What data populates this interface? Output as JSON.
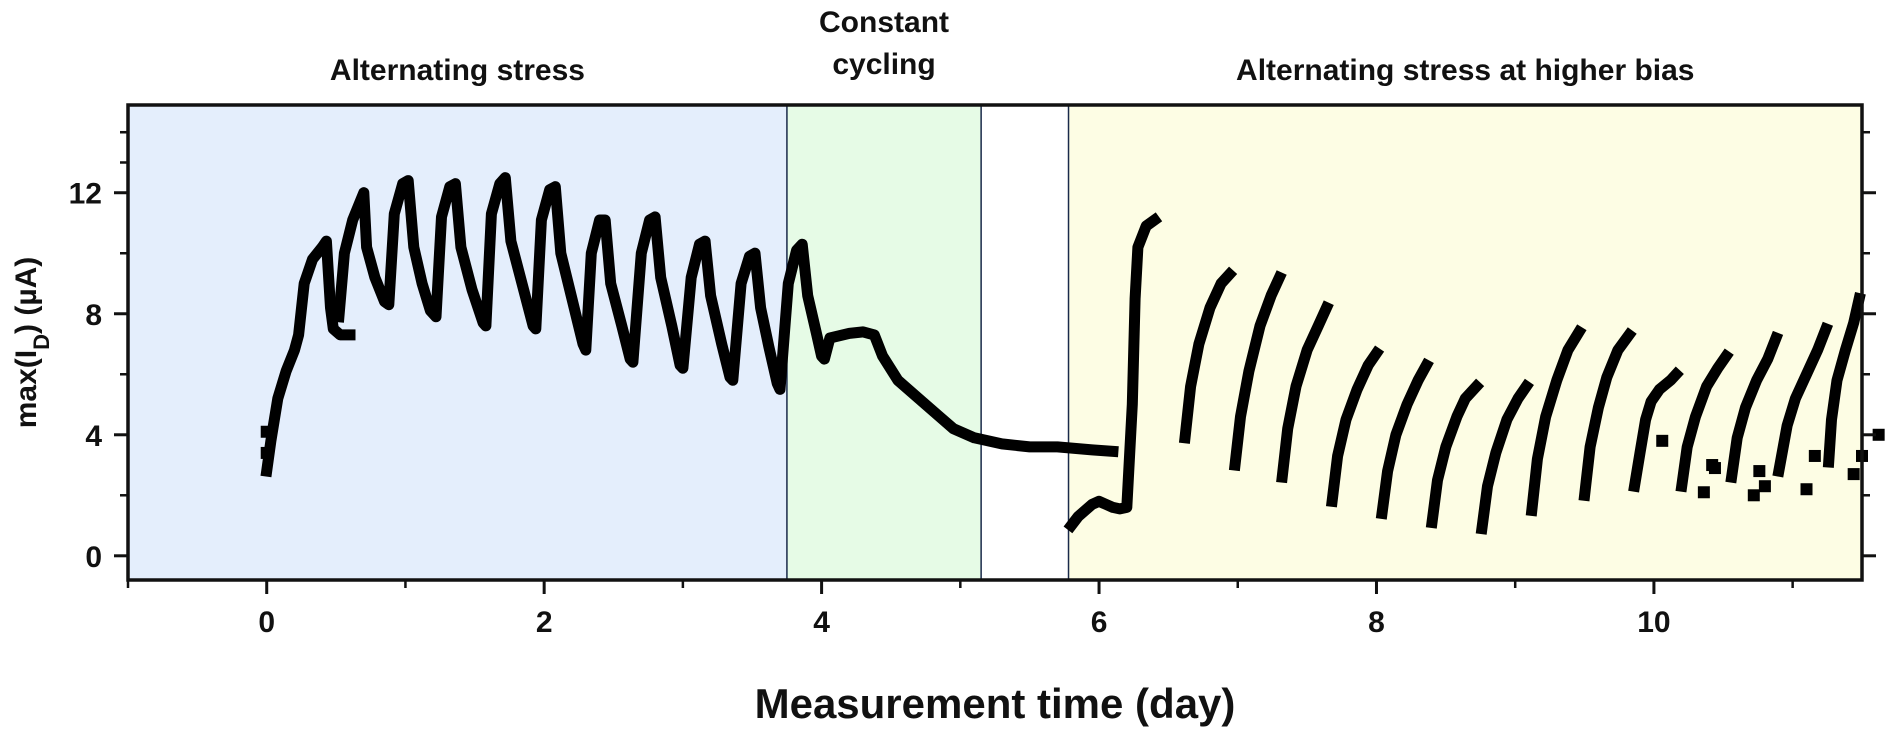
{
  "chart_data": {
    "type": "line",
    "title": "",
    "xlabel": "Measurement time (day)",
    "ylabel": {
      "prefix": "max(I",
      "subscript": "D",
      "suffix": ") (µA)"
    },
    "xlim": [
      -1,
      11.5
    ],
    "ylim": [
      -0.8,
      14.9
    ],
    "x_ticks": [
      0,
      2,
      4,
      6,
      8,
      10
    ],
    "y_ticks": [
      0,
      4,
      8,
      12
    ],
    "grid": false,
    "legend": "none",
    "regions": [
      {
        "label": "Alternating stress",
        "x_start": -1,
        "x_end": 3.75,
        "color": "#e4eefc"
      },
      {
        "label": "Constant cycling",
        "x_start": 3.75,
        "x_end": 5.15,
        "color": "#e6fbe6"
      },
      {
        "label": "Alternating stress at higher bias",
        "x_start": 5.78,
        "x_end": 11.5,
        "color": "#fdfde4"
      }
    ],
    "series": [
      {
        "color": "#000000",
        "segments": [
          [
            [
              0,
              2.8
            ],
            [
              0.03,
              3.8
            ],
            [
              0.08,
              5.2
            ],
            [
              0.14,
              6.1
            ],
            [
              0.2,
              6.8
            ],
            [
              0.23,
              7.3
            ],
            [
              0.27,
              9.0
            ],
            [
              0.33,
              9.8
            ],
            [
              0.4,
              10.2
            ],
            [
              0.43,
              10.4
            ],
            [
              0.46,
              8.2
            ],
            [
              0.48,
              7.5
            ],
            [
              0.53,
              7.3
            ],
            [
              0.6,
              7.3
            ]
          ],
          [
            [
              0.52,
              7.9
            ],
            [
              0.56,
              10.0
            ],
            [
              0.62,
              11.1
            ],
            [
              0.7,
              12.0
            ],
            [
              0.72,
              10.2
            ],
            [
              0.78,
              9.2
            ],
            [
              0.85,
              8.4
            ],
            [
              0.88,
              8.3
            ],
            [
              0.92,
              11.3
            ],
            [
              0.98,
              12.3
            ],
            [
              1.02,
              12.4
            ],
            [
              1.06,
              10.2
            ],
            [
              1.12,
              9.0
            ],
            [
              1.18,
              8.1
            ],
            [
              1.22,
              7.9
            ],
            [
              1.26,
              11.2
            ],
            [
              1.32,
              12.2
            ],
            [
              1.36,
              12.3
            ],
            [
              1.4,
              10.2
            ],
            [
              1.48,
              8.8
            ],
            [
              1.56,
              7.7
            ],
            [
              1.58,
              7.6
            ],
            [
              1.62,
              11.3
            ],
            [
              1.68,
              12.3
            ],
            [
              1.72,
              12.5
            ],
            [
              1.76,
              10.4
            ],
            [
              1.84,
              9.0
            ],
            [
              1.92,
              7.6
            ],
            [
              1.94,
              7.5
            ],
            [
              1.98,
              11.1
            ],
            [
              2.04,
              12.1
            ],
            [
              2.08,
              12.2
            ],
            [
              2.12,
              10.0
            ],
            [
              2.2,
              8.5
            ],
            [
              2.28,
              7.0
            ],
            [
              2.3,
              6.8
            ],
            [
              2.34,
              10.0
            ],
            [
              2.4,
              11.1
            ],
            [
              2.44,
              11.1
            ],
            [
              2.48,
              9.0
            ],
            [
              2.56,
              7.6
            ],
            [
              2.62,
              6.5
            ],
            [
              2.64,
              6.4
            ],
            [
              2.7,
              10.0
            ],
            [
              2.76,
              11.1
            ],
            [
              2.8,
              11.2
            ],
            [
              2.84,
              9.2
            ],
            [
              2.92,
              7.6
            ],
            [
              2.98,
              6.3
            ],
            [
              3.0,
              6.2
            ],
            [
              3.06,
              9.2
            ],
            [
              3.12,
              10.3
            ],
            [
              3.16,
              10.4
            ],
            [
              3.2,
              8.6
            ],
            [
              3.28,
              7.0
            ],
            [
              3.34,
              5.9
            ],
            [
              3.36,
              5.8
            ],
            [
              3.42,
              9.0
            ],
            [
              3.48,
              9.9
            ],
            [
              3.52,
              10.0
            ],
            [
              3.56,
              8.2
            ],
            [
              3.62,
              6.9
            ],
            [
              3.68,
              5.7
            ],
            [
              3.7,
              5.5
            ],
            [
              3.76,
              9.0
            ],
            [
              3.82,
              10.1
            ],
            [
              3.86,
              10.3
            ],
            [
              3.9,
              8.6
            ],
            [
              3.96,
              7.4
            ],
            [
              4.0,
              6.6
            ],
            [
              4.02,
              6.5
            ],
            [
              4.06,
              7.2
            ],
            [
              4.2,
              7.35
            ],
            [
              4.3,
              7.4
            ],
            [
              4.38,
              7.3
            ],
            [
              4.44,
              6.6
            ],
            [
              4.55,
              5.8
            ],
            [
              4.7,
              5.2
            ],
            [
              4.85,
              4.6
            ],
            [
              4.95,
              4.2
            ],
            [
              5.1,
              3.9
            ],
            [
              5.3,
              3.7
            ],
            [
              5.5,
              3.6
            ],
            [
              5.7,
              3.6
            ],
            [
              5.95,
              3.5
            ],
            [
              6.1,
              3.45
            ]
          ],
          [
            [
              5.8,
              1.0
            ],
            [
              5.85,
              1.3
            ],
            [
              5.9,
              1.5
            ],
            [
              5.95,
              1.7
            ],
            [
              6.0,
              1.8
            ],
            [
              6.05,
              1.7
            ],
            [
              6.1,
              1.6
            ],
            [
              6.15,
              1.55
            ],
            [
              6.2,
              1.6
            ],
            [
              6.24,
              5.0
            ],
            [
              6.26,
              8.5
            ],
            [
              6.28,
              10.2
            ],
            [
              6.34,
              10.9
            ],
            [
              6.4,
              11.1
            ]
          ],
          [
            [
              6.62,
              3.9
            ],
            [
              6.66,
              5.6
            ],
            [
              6.72,
              7.0
            ],
            [
              6.8,
              8.2
            ],
            [
              6.88,
              9.0
            ],
            [
              6.94,
              9.3
            ]
          ],
          [
            [
              6.98,
              3.0
            ],
            [
              7.02,
              4.6
            ],
            [
              7.08,
              6.1
            ],
            [
              7.16,
              7.6
            ],
            [
              7.24,
              8.6
            ],
            [
              7.3,
              9.2
            ]
          ],
          [
            [
              7.32,
              2.6
            ],
            [
              7.36,
              4.2
            ],
            [
              7.42,
              5.6
            ],
            [
              7.5,
              6.8
            ],
            [
              7.58,
              7.6
            ],
            [
              7.64,
              8.2
            ]
          ],
          [
            [
              7.68,
              1.8
            ],
            [
              7.72,
              3.3
            ],
            [
              7.78,
              4.5
            ],
            [
              7.86,
              5.5
            ],
            [
              7.94,
              6.3
            ],
            [
              8.0,
              6.7
            ]
          ],
          [
            [
              8.04,
              1.4
            ],
            [
              8.08,
              2.8
            ],
            [
              8.14,
              4.0
            ],
            [
              8.22,
              5.0
            ],
            [
              8.3,
              5.8
            ],
            [
              8.36,
              6.3
            ]
          ],
          [
            [
              8.4,
              1.1
            ],
            [
              8.44,
              2.5
            ],
            [
              8.5,
              3.6
            ],
            [
              8.58,
              4.6
            ],
            [
              8.64,
              5.2
            ],
            [
              8.72,
              5.6
            ]
          ],
          [
            [
              8.76,
              0.9
            ],
            [
              8.8,
              2.3
            ],
            [
              8.86,
              3.4
            ],
            [
              8.94,
              4.5
            ],
            [
              9.02,
              5.2
            ],
            [
              9.08,
              5.6
            ]
          ],
          [
            [
              9.12,
              1.5
            ],
            [
              9.16,
              3.2
            ],
            [
              9.22,
              4.6
            ],
            [
              9.3,
              5.8
            ],
            [
              9.38,
              6.8
            ],
            [
              9.46,
              7.4
            ]
          ],
          [
            [
              9.5,
              2.0
            ],
            [
              9.54,
              3.6
            ],
            [
              9.6,
              4.9
            ],
            [
              9.66,
              5.9
            ],
            [
              9.74,
              6.8
            ],
            [
              9.82,
              7.3
            ]
          ],
          [
            [
              9.86,
              2.3
            ],
            [
              9.9,
              3.4
            ],
            [
              9.94,
              4.5
            ],
            [
              9.98,
              5.1
            ],
            [
              10.04,
              5.5
            ],
            [
              10.12,
              5.8
            ],
            [
              10.16,
              6.0
            ]
          ],
          [
            [
              10.2,
              2.3
            ],
            [
              10.24,
              3.6
            ],
            [
              10.3,
              4.6
            ],
            [
              10.38,
              5.6
            ],
            [
              10.46,
              6.2
            ],
            [
              10.52,
              6.6
            ]
          ],
          [
            [
              10.56,
              2.6
            ],
            [
              10.6,
              3.9
            ],
            [
              10.66,
              4.9
            ],
            [
              10.74,
              5.8
            ],
            [
              10.82,
              6.5
            ],
            [
              10.88,
              7.2
            ]
          ],
          [
            [
              10.9,
              2.8
            ],
            [
              10.96,
              4.3
            ],
            [
              11.02,
              5.2
            ],
            [
              11.1,
              6.0
            ],
            [
              11.18,
              6.8
            ],
            [
              11.24,
              7.5
            ]
          ],
          [
            [
              11.26,
              3.1
            ],
            [
              11.28,
              4.5
            ],
            [
              11.32,
              5.8
            ],
            [
              11.38,
              6.8
            ],
            [
              11.44,
              7.7
            ],
            [
              11.48,
              8.5
            ]
          ]
        ],
        "points": [
          [
            0,
            3.4
          ],
          [
            0,
            4.1
          ],
          [
            10.06,
            3.8
          ],
          [
            10.36,
            2.1
          ],
          [
            10.42,
            3.0
          ],
          [
            10.72,
            2.0
          ],
          [
            10.76,
            2.8
          ],
          [
            11.1,
            2.2
          ],
          [
            11.16,
            3.3
          ],
          [
            11.44,
            2.7
          ],
          [
            11.5,
            3.3
          ],
          [
            11.62,
            4.0
          ],
          [
            10.44,
            2.9
          ],
          [
            10.8,
            2.3
          ]
        ]
      }
    ]
  }
}
